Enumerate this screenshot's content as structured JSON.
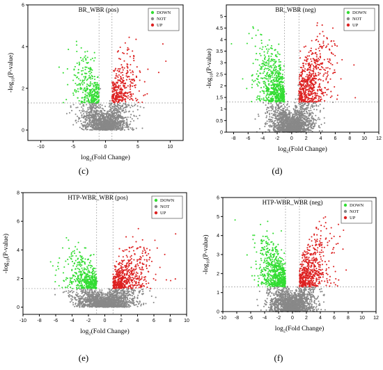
{
  "chart_data": [
    {
      "panel_label": "(c)",
      "type": "scatter",
      "title": "BR_WBR (pos)",
      "xlabel_main": "log",
      "xlabel_sub": "2",
      "xlabel_rest": "(Fold Change)",
      "ylabel_pre": "-log",
      "ylabel_sub": "10",
      "ylabel_rest": "(P-value)",
      "xlim": [
        -12,
        12
      ],
      "ylim": [
        -0.5,
        6
      ],
      "xticks": [
        -10,
        -5,
        0,
        5,
        10
      ],
      "yticks": [
        0,
        2,
        4,
        6
      ],
      "thresholds": {
        "fc": 1,
        "p": 1.3
      },
      "legend": {
        "placement": "top-right",
        "entries": [
          "DOWN",
          "NOT",
          "UP"
        ]
      },
      "colors": {
        "DOWN": "#33dd33",
        "NOT": "#888888",
        "UP": "#dd2222"
      },
      "series_counts": {
        "NOT": 1400,
        "DOWN": 330,
        "UP": 330
      },
      "spread": {
        "x_not": 1.8,
        "y_max": 4.6
      }
    },
    {
      "panel_label": "(d)",
      "type": "scatter",
      "title": "BR_WBR (neg)",
      "xlabel_main": "log",
      "xlabel_sub": "2",
      "xlabel_rest": "(Fold Change)",
      "ylabel_pre": "-log",
      "ylabel_sub": "10",
      "ylabel_rest": "(P-value)",
      "xlim": [
        -9,
        12
      ],
      "ylim": [
        0,
        5.5
      ],
      "xticks": [
        -8,
        -6,
        -4,
        -2,
        0,
        2,
        4,
        6,
        8,
        10,
        12
      ],
      "yticks": [
        0,
        0.5,
        1,
        1.5,
        2,
        2.5,
        3,
        3.5,
        4,
        4.5,
        5
      ],
      "thresholds": {
        "fc": 1,
        "p": 1.3
      },
      "legend": {
        "placement": "top-right",
        "entries": [
          "DOWN",
          "NOT",
          "UP"
        ]
      },
      "colors": {
        "DOWN": "#33dd33",
        "NOT": "#888888",
        "UP": "#dd2222"
      },
      "series_counts": {
        "NOT": 1500,
        "DOWN": 650,
        "UP": 600
      },
      "spread": {
        "x_not": 1.5,
        "y_max": 4.8
      }
    },
    {
      "panel_label": "(e)",
      "type": "scatter",
      "title": "HTP-WBR_WBR (pos)",
      "xlabel_main": "log",
      "xlabel_sub": "2",
      "xlabel_rest": "(Fold Change)",
      "ylabel_pre": "-log",
      "ylabel_sub": "10",
      "ylabel_rest": "(P-value)",
      "xlim": [
        -10,
        10
      ],
      "ylim": [
        -0.5,
        8
      ],
      "xticks": [
        -10,
        -8,
        -6,
        -4,
        -2,
        0,
        2,
        4,
        6,
        8,
        10
      ],
      "yticks": [
        0,
        2,
        4,
        6,
        8
      ],
      "thresholds": {
        "fc": 1,
        "p": 1.3
      },
      "legend": {
        "placement": "top-right",
        "entries": [
          "DOWN",
          "NOT",
          "UP"
        ]
      },
      "colors": {
        "DOWN": "#33dd33",
        "NOT": "#888888",
        "UP": "#dd2222"
      },
      "series_counts": {
        "NOT": 1500,
        "DOWN": 450,
        "UP": 550
      },
      "spread": {
        "x_not": 1.8,
        "y_max": 5.5
      }
    },
    {
      "panel_label": "(f)",
      "type": "scatter",
      "title": "HTP-WBR_WBR (neg)",
      "xlabel_main": "log",
      "xlabel_sub": "2",
      "xlabel_rest": "(Fold Change)",
      "ylabel_pre": "-log",
      "ylabel_sub": "10",
      "ylabel_rest": "(P-value)",
      "xlim": [
        -10,
        12
      ],
      "ylim": [
        0,
        6
      ],
      "xticks": [
        -10,
        -8,
        -6,
        -4,
        -2,
        0,
        2,
        4,
        6,
        8,
        10,
        12
      ],
      "yticks": [
        0,
        1,
        2,
        3,
        4,
        5,
        6
      ],
      "thresholds": {
        "fc": 1,
        "p": 1.3
      },
      "legend": {
        "placement": "top-right",
        "entries": [
          "DOWN",
          "NOT",
          "UP"
        ]
      },
      "colors": {
        "DOWN": "#33dd33",
        "NOT": "#888888",
        "UP": "#dd2222"
      },
      "series_counts": {
        "NOT": 1600,
        "DOWN": 650,
        "UP": 550
      },
      "spread": {
        "x_not": 1.6,
        "y_max": 5.0
      }
    }
  ]
}
